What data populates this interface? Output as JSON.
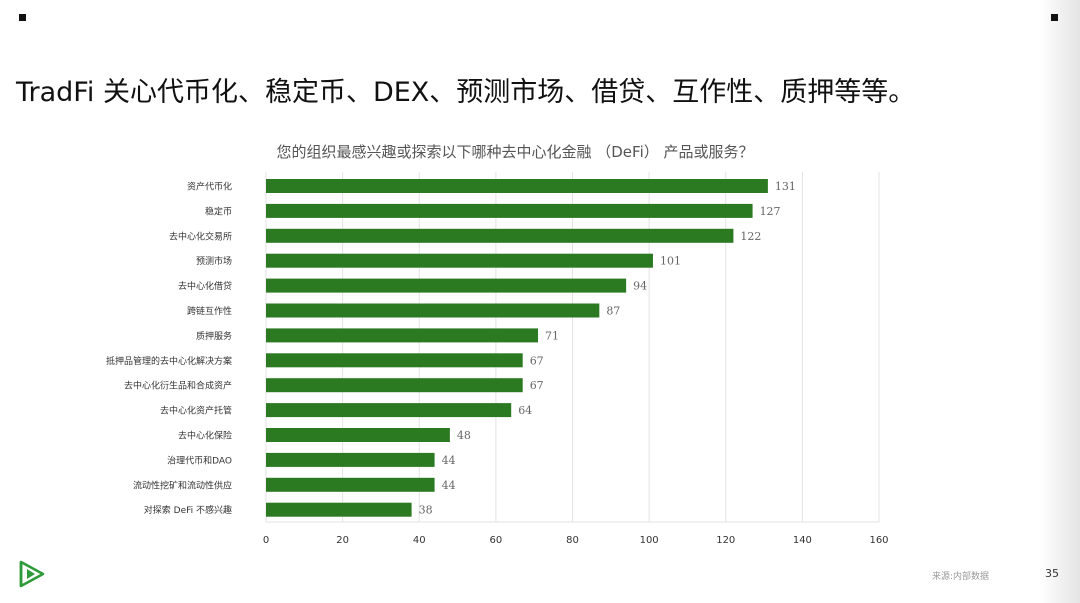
{
  "slide": {
    "title": "TradFi 关心代币化、稳定币、DEX、预测市场、借贷、互作性、质押等等。",
    "footer_source": "来源:内部数据",
    "page_number": "35"
  },
  "colors": {
    "bar": "#2b7a22",
    "grid": "#e3e3e3",
    "logo": "#2f9a3a"
  },
  "icons": {
    "logo": "play-chevron-logo-icon"
  },
  "chart_data": {
    "type": "bar",
    "orientation": "horizontal",
    "title": "您的组织最感兴趣或探索以下哪种去中心化金融 （DeFi） 产品或服务？",
    "categories": [
      "资产代币化",
      "稳定币",
      "去中心化交易所",
      "预测市场",
      "去中心化借贷",
      "跨链互作性",
      "质押服务",
      "抵押品管理的去中心化解决方案",
      "去中心化衍生品和合成资产",
      "去中心化资产托管",
      "去中心化保险",
      "治理代币和DAO",
      "流动性挖矿和流动性供应",
      "对探索 DeFi 不感兴趣"
    ],
    "values": [
      131,
      127,
      122,
      101,
      94,
      87,
      71,
      67,
      67,
      64,
      48,
      44,
      44,
      38
    ],
    "xlim": [
      0,
      160
    ],
    "xticks": [
      0,
      20,
      40,
      60,
      80,
      100,
      120,
      140,
      160
    ],
    "grid": true,
    "data_labels": true,
    "xlabel": "",
    "ylabel": ""
  }
}
